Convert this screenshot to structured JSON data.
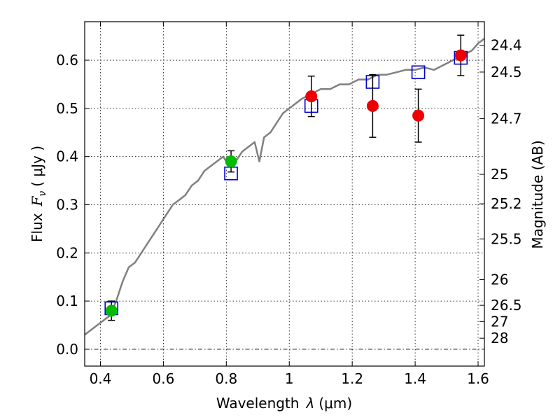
{
  "chart_data": {
    "type": "scatter",
    "xlabel_text": "Wavelength",
    "xlabel_symbol": "λ",
    "xlabel_unit": "(μm)",
    "ylabel_text": "Flux",
    "ylabel_symbol": "F",
    "ylabel_sub": "ν",
    "ylabel_unit": "( μJy )",
    "y2label": "Magnitude (AB)",
    "xlim": [
      0.35,
      1.62
    ],
    "ylim": [
      -0.035,
      0.68
    ],
    "x_ticks": [
      0.4,
      0.6,
      0.8,
      1.0,
      1.2,
      1.4,
      1.6
    ],
    "x_tick_labels": [
      "0.4",
      "0.6",
      "0.8",
      "1",
      "1.2",
      "1.4",
      "1.6"
    ],
    "y_ticks": [
      0.0,
      0.1,
      0.2,
      0.3,
      0.4,
      0.5,
      0.6
    ],
    "y_tick_labels": [
      "0.0",
      "0.1",
      "0.2",
      "0.3",
      "0.4",
      "0.5",
      "0.6"
    ],
    "mag_ticks": [
      "24.4",
      "24.5",
      "24.7",
      "25",
      "25.2",
      "25.5",
      "26",
      "26.5",
      "27",
      "28"
    ],
    "grid": true,
    "series": [
      {
        "kind": "line",
        "color": "#808080",
        "x": [
          0.35,
          0.37,
          0.39,
          0.41,
          0.43,
          0.45,
          0.47,
          0.49,
          0.51,
          0.53,
          0.55,
          0.57,
          0.59,
          0.61,
          0.63,
          0.65,
          0.67,
          0.69,
          0.71,
          0.73,
          0.75,
          0.77,
          0.79,
          0.81,
          0.83,
          0.85,
          0.87,
          0.89,
          0.905,
          0.92,
          0.94,
          0.96,
          0.98,
          1.0,
          1.02,
          1.04,
          1.07,
          1.1,
          1.13,
          1.16,
          1.19,
          1.22,
          1.25,
          1.28,
          1.31,
          1.34,
          1.37,
          1.4,
          1.43,
          1.46,
          1.49,
          1.52,
          1.55,
          1.58,
          1.6,
          1.62
        ],
        "y": [
          0.03,
          0.04,
          0.05,
          0.06,
          0.07,
          0.1,
          0.14,
          0.17,
          0.18,
          0.2,
          0.22,
          0.24,
          0.26,
          0.28,
          0.3,
          0.31,
          0.32,
          0.34,
          0.35,
          0.37,
          0.38,
          0.39,
          0.4,
          0.38,
          0.39,
          0.41,
          0.42,
          0.43,
          0.39,
          0.44,
          0.45,
          0.47,
          0.49,
          0.5,
          0.51,
          0.52,
          0.53,
          0.54,
          0.54,
          0.55,
          0.55,
          0.56,
          0.56,
          0.57,
          0.57,
          0.575,
          0.58,
          0.58,
          0.585,
          0.58,
          0.59,
          0.6,
          0.61,
          0.62,
          0.635,
          0.645
        ]
      },
      {
        "kind": "marker-square",
        "color": "#0000cc",
        "x": [
          0.435,
          0.815,
          1.07,
          1.265,
          1.41,
          1.545
        ],
        "y": [
          0.085,
          0.365,
          0.505,
          0.555,
          0.575,
          0.605
        ]
      },
      {
        "kind": "marker-circle",
        "color": "#00bb00",
        "x": [
          0.435,
          0.815
        ],
        "y": [
          0.08,
          0.39
        ],
        "yerr": [
          0.02,
          0.022
        ]
      },
      {
        "kind": "marker-circle",
        "color": "#ee0000",
        "x": [
          1.07,
          1.265,
          1.41,
          1.545
        ],
        "y": [
          0.525,
          0.505,
          0.485,
          0.61
        ],
        "yerr": [
          0.042,
          0.065,
          0.055,
          0.042
        ]
      }
    ]
  }
}
